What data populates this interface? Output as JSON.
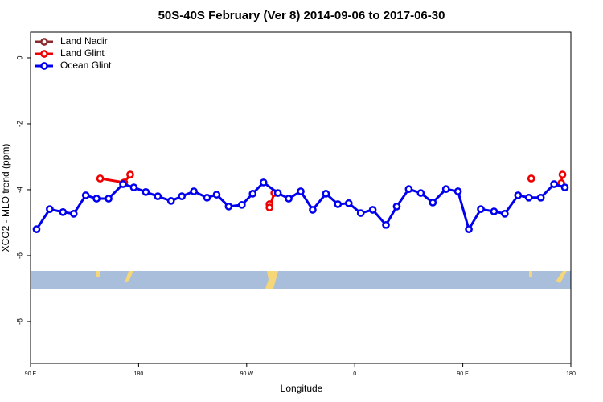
{
  "chart_data": {
    "type": "line",
    "title": "50S-40S February (Ver 8)   2014-09-06 to 2017-06-30",
    "x_label": "Longitude",
    "y_label": "XCO2 - MLO trend (ppm)",
    "xlim": [
      90,
      540
    ],
    "xticks": [
      {
        "value": 90,
        "label": "90 E"
      },
      {
        "value": 180,
        "label": "180"
      },
      {
        "value": 270,
        "label": "90 W"
      },
      {
        "value": 360,
        "label": "0"
      },
      {
        "value": 450,
        "label": "90 E"
      },
      {
        "value": 540,
        "label": "180"
      }
    ],
    "ylim": [
      -9.27,
      0.78
    ],
    "yticks": [
      0,
      -2,
      -4,
      -6,
      -8
    ],
    "legend": "top-left",
    "series": [
      {
        "name": "Land Nadir",
        "color": "#8b2a2a",
        "x": [],
        "values": []
      },
      {
        "name": "Land Glint",
        "color": "#ee0000",
        "x": [
          148,
          168,
          173,
          null,
          289,
          289,
          293,
          null,
          507,
          null,
          532,
          533
        ],
        "values": [
          -3.66,
          -3.78,
          -3.54,
          null,
          -4.44,
          -4.54,
          -4.1,
          null,
          -3.66,
          null,
          -3.8,
          -3.54
        ]
      },
      {
        "name": "Ocean Glint",
        "color": "#0000ee",
        "x": [
          95,
          106,
          117,
          126,
          136,
          145,
          155,
          167,
          176,
          186,
          196,
          207,
          216,
          226,
          237,
          245,
          255,
          266,
          275,
          284,
          296,
          305,
          315,
          325,
          336,
          346,
          355,
          365,
          375,
          386,
          395,
          405,
          415,
          425,
          436,
          446,
          455,
          465,
          476,
          485,
          496,
          505,
          515,
          526,
          535
        ],
        "values": [
          -5.2,
          -4.59,
          -4.68,
          -4.73,
          -4.17,
          -4.27,
          -4.27,
          -3.83,
          -3.93,
          -4.07,
          -4.2,
          -4.34,
          -4.2,
          -4.05,
          -4.24,
          -4.15,
          -4.51,
          -4.46,
          -4.12,
          -3.78,
          -4.1,
          -4.27,
          -4.05,
          -4.61,
          -4.12,
          -4.44,
          -4.41,
          -4.71,
          -4.61,
          -5.07,
          -4.51,
          -3.98,
          -4.1,
          -4.39,
          -3.98,
          -4.05,
          -5.2,
          -4.59,
          -4.66,
          -4.73,
          -4.17,
          -4.24,
          -4.24,
          -3.83,
          -3.93
        ]
      }
    ]
  }
}
